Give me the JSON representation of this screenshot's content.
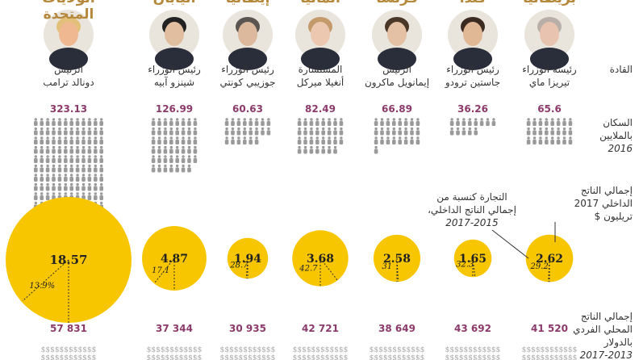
{
  "row_labels": {
    "leaders": "القادة",
    "population_line1": "السكان",
    "population_line2": "بالملايين",
    "population_year": "2016",
    "gdp_line1": "إجمالي الناتج",
    "gdp_line2": "الداخلي 2017",
    "gdp_line3": "تريليون $",
    "gdppc_line1": "إجمالي الناتج",
    "gdppc_line2": "المحلي الفردي",
    "gdppc_line3": "بالدولار",
    "gdppc_line4": "2017-2013"
  },
  "trade_note": {
    "line1": "التجارة كنسبة من",
    "line2": "إجمالي الناتج الداخلي،",
    "years": "2017-2015"
  },
  "colors": {
    "country": "#b5893b",
    "figure": "#9a9a9a",
    "gdp_circle": "#f7c600",
    "value": "#8b3a6b"
  },
  "countries": [
    {
      "name": "بريطانيا",
      "title": "رئيسة الوزراء",
      "leader": "تيريزا ماي",
      "hair": "#b8b0a8",
      "skin": "#e8c4b0",
      "population": "65.6",
      "gdp": "2.62",
      "trade": "29.2",
      "gdp_per_capita": "41 520"
    },
    {
      "name": "كندا",
      "title": "رئيس الوزراء",
      "leader": "جاستين ترودو",
      "hair": "#3a2a20",
      "skin": "#e0b896",
      "population": "36.26",
      "gdp": "1.65",
      "trade": "32.3",
      "gdp_per_capita": "43 692"
    },
    {
      "name": "فرنسا",
      "title": "الرئيس",
      "leader": "إيمانويل ماكرون",
      "hair": "#4a3626",
      "skin": "#e4c0a4",
      "population": "66.89",
      "gdp": "2.58",
      "trade": "31",
      "gdp_per_capita": "38 649"
    },
    {
      "name": "ألمانيا",
      "title": "المستشارة",
      "leader": "أنغيلا ميركل",
      "hair": "#c49a6a",
      "skin": "#ecc8b0",
      "population": "82.49",
      "gdp": "3.68",
      "trade": "42.7",
      "gdp_per_capita": "42 721"
    },
    {
      "name": "إيطاليا",
      "title": "رئيس الوزراء",
      "leader": "جوزيبي كونتي",
      "hair": "#5a5550",
      "skin": "#dcb89c",
      "population": "60.63",
      "gdp": "1.94",
      "trade": "28.7",
      "gdp_per_capita": "30 935"
    },
    {
      "name": "اليابان",
      "title": "رئيس الوزراء",
      "leader": "شينزو آبيه",
      "hair": "#222222",
      "skin": "#e2bea0",
      "population": "126.99",
      "gdp": "4.87",
      "trade": "17.1",
      "gdp_per_capita": "37 344"
    },
    {
      "name": "الولايات المتحدة",
      "title": "الرئيس",
      "leader": "دونالد ترامب",
      "hair": "#e2c07a",
      "skin": "#f0b890",
      "population": "323.13",
      "gdp": "18.57",
      "trade": "13.9%",
      "gdp_per_capita": "57 831"
    }
  ],
  "chart_data": {
    "type": "table",
    "columns": [
      "بريطانيا",
      "كندا",
      "فرنسا",
      "ألمانيا",
      "إيطاليا",
      "اليابان",
      "الولايات المتحدة"
    ],
    "series": [
      {
        "name": "السكان بالملايين 2016",
        "values": [
          65.6,
          36.26,
          66.89,
          82.49,
          60.63,
          126.99,
          323.13
        ]
      },
      {
        "name": "إجمالي الناتج الداخلي 2017 تريليون $",
        "values": [
          2.62,
          1.65,
          2.58,
          3.68,
          1.94,
          4.87,
          18.57
        ]
      },
      {
        "name": "التجارة كنسبة من إجمالي الناتج الداخلي، 2017-2015",
        "values": [
          29.2,
          32.3,
          31,
          42.7,
          28.7,
          17.1,
          13.9
        ]
      },
      {
        "name": "إجمالي الناتج المحلي الفردي بالدولار 2017-2013",
        "values": [
          41520,
          43692,
          38649,
          42721,
          30935,
          37344,
          57831
        ]
      }
    ]
  }
}
